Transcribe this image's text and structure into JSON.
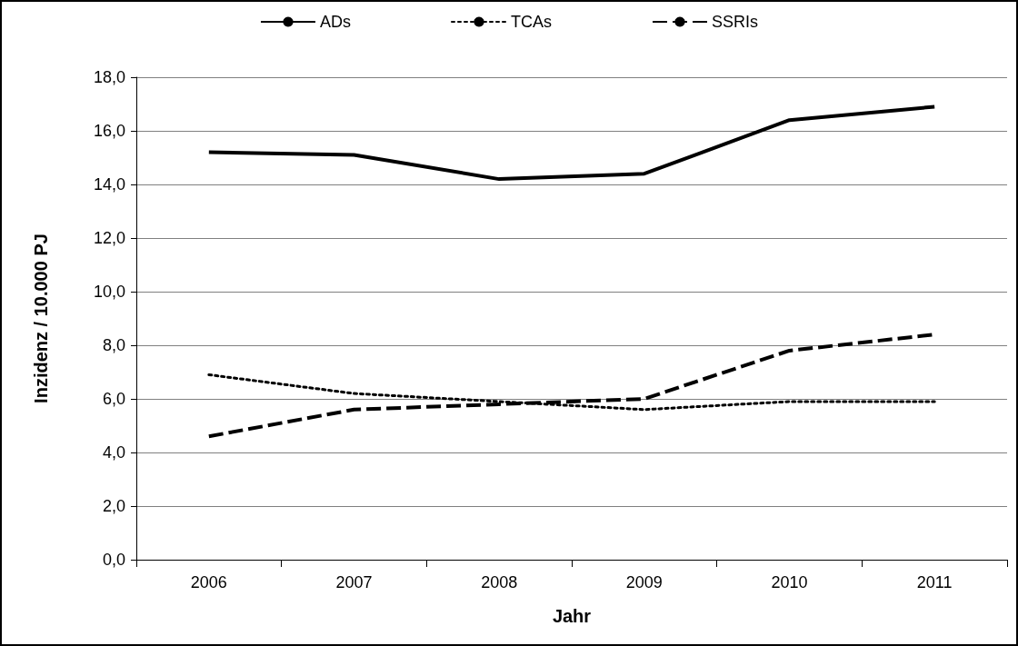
{
  "chart_data": {
    "type": "line",
    "xlabel": "Jahr",
    "ylabel": "Inzidenz / 10.000 PJ",
    "categories": [
      "2006",
      "2007",
      "2008",
      "2009",
      "2010",
      "2011"
    ],
    "series": [
      {
        "name": "ADs",
        "color": "#000000",
        "line_style": "solid",
        "values": [
          15.2,
          15.1,
          14.2,
          14.4,
          16.4,
          16.9
        ]
      },
      {
        "name": "TCAs",
        "color": "#000000",
        "line_style": "dotted",
        "values": [
          6.9,
          6.2,
          5.9,
          5.6,
          5.9,
          5.9
        ]
      },
      {
        "name": "SSRIs",
        "color": "#000000",
        "line_style": "dashed",
        "values": [
          4.6,
          5.6,
          5.8,
          6.0,
          7.8,
          8.4
        ]
      }
    ],
    "ylim": [
      0,
      18
    ],
    "yticks": [
      {
        "value": 0,
        "label": "0,0"
      },
      {
        "value": 2,
        "label": "2,0"
      },
      {
        "value": 4,
        "label": "4,0"
      },
      {
        "value": 6,
        "label": "6,0"
      },
      {
        "value": 8,
        "label": "8,0"
      },
      {
        "value": 10,
        "label": "10,0"
      },
      {
        "value": 12,
        "label": "12,0"
      },
      {
        "value": 14,
        "label": "14,0"
      },
      {
        "value": 16,
        "label": "16,0"
      },
      {
        "value": 18,
        "label": "18,0"
      }
    ],
    "grid": "y",
    "legend": "top",
    "marker": "none"
  }
}
